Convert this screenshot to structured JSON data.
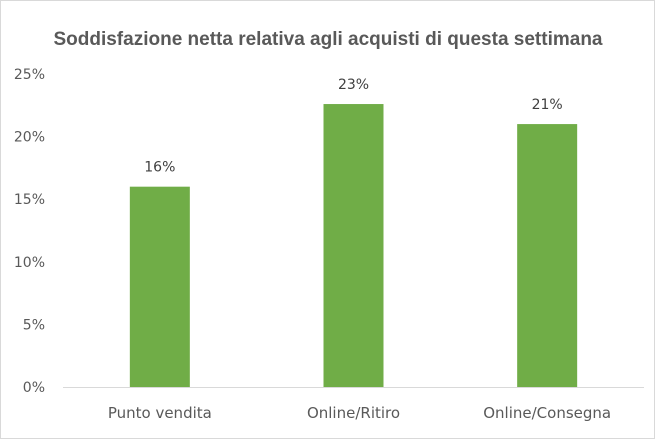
{
  "chart_data": {
    "type": "bar",
    "title": "Soddisfazione netta relativa agli acquisti di questa settimana",
    "categories": [
      "Punto vendita",
      "Online/Ritiro",
      "Online/Consegna"
    ],
    "values": [
      0.16,
      0.226,
      0.21
    ],
    "data_labels": [
      "16%",
      "23%",
      "21%"
    ],
    "y_ticks": [
      "0%",
      "5%",
      "10%",
      "15%",
      "20%",
      "25%"
    ],
    "ylim": [
      0,
      0.25
    ],
    "grid": false,
    "legend": "none",
    "bar_color": "#70ad47"
  }
}
